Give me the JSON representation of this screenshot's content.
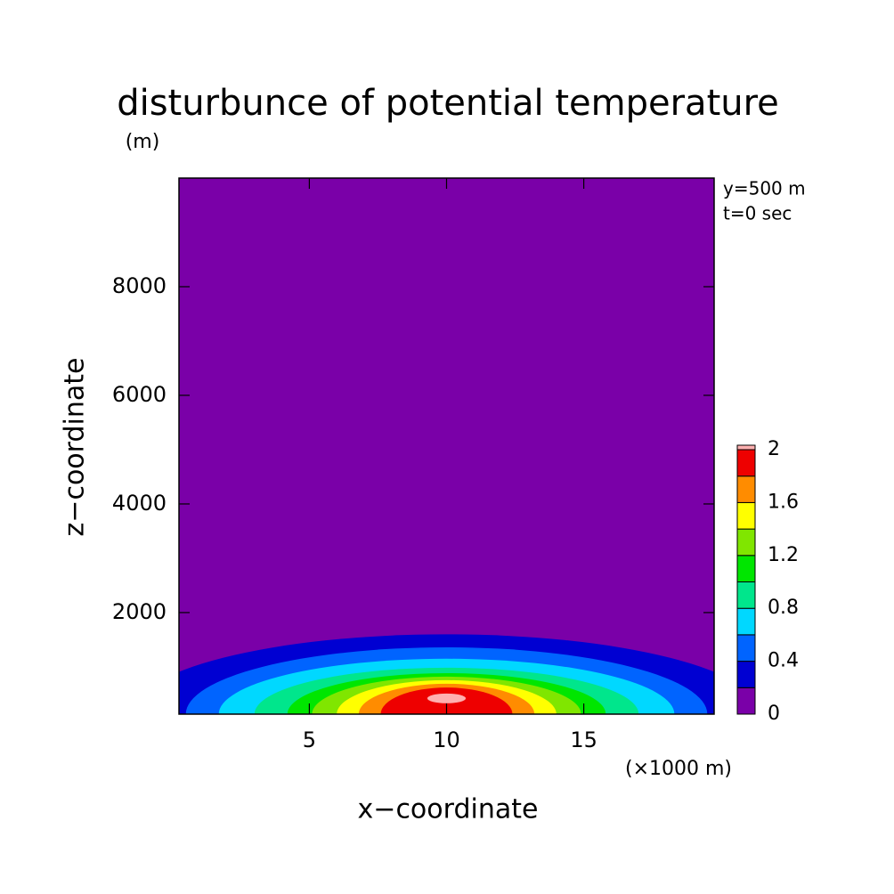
{
  "chart_data": {
    "type": "contour",
    "title": "disturbunce of potential temperature",
    "y_unit": "(m)",
    "x_unit": "(×1000 m)",
    "xlabel": "x−coordinate",
    "ylabel": "z−coordinate",
    "annotations": [
      "y=500 m",
      "t=0 sec"
    ],
    "xlim": [
      0.25,
      19.75
    ],
    "xticks": [
      5,
      10,
      15
    ],
    "ylim": [
      130,
      10000
    ],
    "yticks": [
      2000,
      4000,
      6000,
      8000
    ],
    "levels": [
      0,
      0.2,
      0.4,
      0.6,
      0.8,
      1,
      1.2,
      1.4,
      1.6,
      1.8,
      2
    ],
    "colors": [
      "#7a00a8",
      "#0000d2",
      "#0064ff",
      "#00d8ff",
      "#00e68c",
      "#00e600",
      "#80e600",
      "#ffff00",
      "#ff8c00",
      "#ee0000"
    ],
    "over_color": "#ffb0b0",
    "colorbar_ticks": [
      0,
      0.4,
      0.8,
      1.2,
      1.6,
      2
    ],
    "contours": [
      {
        "level": 0.2,
        "cx": 10,
        "cz": 130,
        "rx": 11.5,
        "rz": 1470
      },
      {
        "level": 0.4,
        "cx": 10,
        "cz": 130,
        "rx": 9.5,
        "rz": 1230
      },
      {
        "level": 0.6,
        "cx": 10,
        "cz": 130,
        "rx": 8.3,
        "rz": 1020
      },
      {
        "level": 0.8,
        "cx": 10,
        "cz": 130,
        "rx": 7.0,
        "rz": 855
      },
      {
        "level": 1,
        "cx": 10,
        "cz": 130,
        "rx": 5.8,
        "rz": 755
      },
      {
        "level": 1.2,
        "cx": 10,
        "cz": 130,
        "rx": 4.9,
        "rz": 690
      },
      {
        "level": 1.4,
        "cx": 10,
        "cz": 130,
        "rx": 4.0,
        "rz": 625
      },
      {
        "level": 1.6,
        "cx": 10,
        "cz": 130,
        "rx": 3.2,
        "rz": 560
      },
      {
        "level": 1.8,
        "cx": 10,
        "cz": 130,
        "rx": 2.4,
        "rz": 490
      },
      {
        "level": 2,
        "cx": 10,
        "cz": 420,
        "rx": 0.7,
        "rz": 90
      }
    ]
  }
}
